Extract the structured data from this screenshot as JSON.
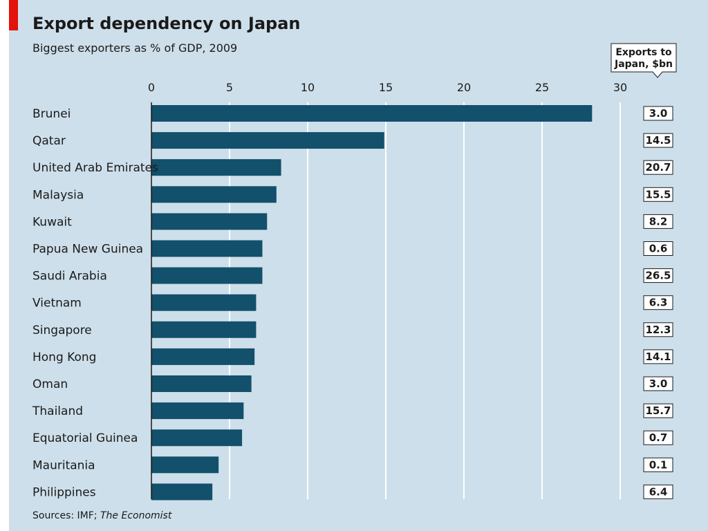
{
  "title": "Export dependency on Japan",
  "subtitle": "Biggest exporters as % of GDP, 2009",
  "source": {
    "prefix": "Sources: IMF; ",
    "italic": "The Economist"
  },
  "colors": {
    "background": "#cddfea",
    "bar": "#12506b",
    "accent": "#e3120b",
    "grid": "#ffffff"
  },
  "chart_data": {
    "type": "bar",
    "orientation": "horizontal",
    "title": "Export dependency on Japan",
    "subtitle": "Biggest exporters as % of GDP, 2009",
    "categories": [
      "Brunei",
      "Qatar",
      "United Arab Emirates",
      "Malaysia",
      "Kuwait",
      "Papua New Guinea",
      "Saudi Arabia",
      "Vietnam",
      "Singapore",
      "Hong Kong",
      "Oman",
      "Thailand",
      "Equatorial Guinea",
      "Mauritania",
      "Philippines"
    ],
    "values": [
      28.2,
      14.9,
      8.3,
      8.0,
      7.4,
      7.1,
      7.1,
      6.7,
      6.7,
      6.6,
      6.4,
      5.9,
      5.8,
      4.3,
      3.9
    ],
    "xticks": [
      0,
      5,
      10,
      15,
      20,
      25,
      30
    ],
    "xlim": [
      0,
      30
    ],
    "xaxis_position": "top",
    "grid": true,
    "side_column": {
      "header": [
        "Exports to",
        "Japan, $bn"
      ],
      "values": [
        "3.0",
        "14.5",
        "20.7",
        "15.5",
        "8.2",
        "0.6",
        "26.5",
        "6.3",
        "12.3",
        "14.1",
        "3.0",
        "15.7",
        "0.7",
        "0.1",
        "6.4"
      ]
    }
  }
}
